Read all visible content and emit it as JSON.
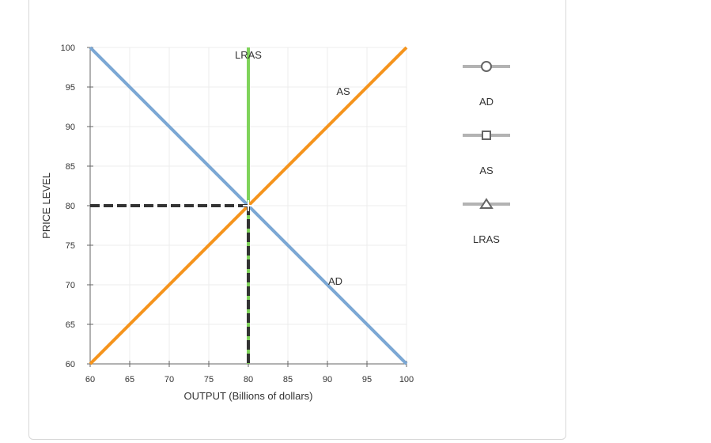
{
  "chart_data": {
    "type": "line",
    "xlabel": "OUTPUT (Billions of dollars)",
    "ylabel": "PRICE LEVEL",
    "xlim": [
      60,
      100
    ],
    "ylim": [
      60,
      100
    ],
    "xticks": [
      60,
      65,
      70,
      75,
      80,
      85,
      90,
      95,
      100
    ],
    "yticks": [
      60,
      65,
      70,
      75,
      80,
      85,
      90,
      95,
      100
    ],
    "grid": true,
    "legend_position": "right",
    "series": [
      {
        "name": "AD",
        "color": "#7ba7d4",
        "marker": "circle",
        "x": [
          60,
          100
        ],
        "y": [
          100,
          60
        ],
        "label": "AD",
        "label_at": [
          91,
          70
        ]
      },
      {
        "name": "AS",
        "color": "#f5941d",
        "marker": "square",
        "x": [
          60,
          100
        ],
        "y": [
          60,
          100
        ],
        "label": "AS",
        "label_at": [
          92,
          94
        ]
      },
      {
        "name": "LRAS",
        "color": "#7fd35a",
        "marker": "triangle",
        "x": [
          80,
          80
        ],
        "y": [
          60,
          100
        ],
        "label": "LRAS",
        "label_at": [
          80,
          98.6
        ]
      }
    ],
    "equilibrium": {
      "x": 80,
      "y": 80,
      "guide_color": "#333333"
    }
  },
  "legend": {
    "items": [
      {
        "label": "AD",
        "marker": "circle"
      },
      {
        "label": "AS",
        "marker": "square"
      },
      {
        "label": "LRAS",
        "marker": "triangle"
      }
    ],
    "line_color": "#b3b3b3",
    "marker_color": "#666666"
  }
}
